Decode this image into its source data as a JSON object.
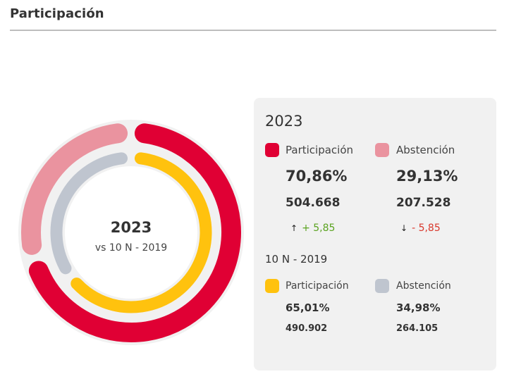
{
  "header": {
    "title": "Participación"
  },
  "center": {
    "year": "2023",
    "subtitle": "vs 10 N - 2019"
  },
  "panel": {
    "current": {
      "year": "2023",
      "items": [
        {
          "label": "Participación",
          "percent": "70,86%",
          "votes": "504.668",
          "delta": "+ 5,85",
          "direction": "up",
          "color": "#e00034"
        },
        {
          "label": "Abstención",
          "percent": "29,13%",
          "votes": "207.528",
          "delta": "- 5,85",
          "direction": "down",
          "color": "#ea939f"
        }
      ]
    },
    "previous": {
      "year": "10 N - 2019",
      "items": [
        {
          "label": "Participación",
          "percent": "65,01%",
          "votes": "490.902",
          "color": "#ffc20e"
        },
        {
          "label": "Abstención",
          "percent": "34,98%",
          "votes": "264.105",
          "color": "#bfc5cf"
        }
      ]
    },
    "icons": {
      "up": "↑",
      "down": "↓"
    }
  },
  "chart_data": {
    "type": "pie",
    "variant": "concentric-donut",
    "title": "Participación",
    "center_label": [
      "2023",
      "vs 10 N - 2019"
    ],
    "rings": [
      {
        "name": "2023",
        "position": "outer",
        "slices": [
          {
            "label": "Participación",
            "value": 70.86,
            "color": "#e00034"
          },
          {
            "label": "Abstención",
            "value": 29.13,
            "color": "#ea939f"
          }
        ]
      },
      {
        "name": "10 N - 2019",
        "position": "inner",
        "slices": [
          {
            "label": "Participación",
            "value": 65.01,
            "color": "#ffc20e"
          },
          {
            "label": "Abstención",
            "value": 34.98,
            "color": "#bfc5cf"
          }
        ]
      }
    ]
  }
}
